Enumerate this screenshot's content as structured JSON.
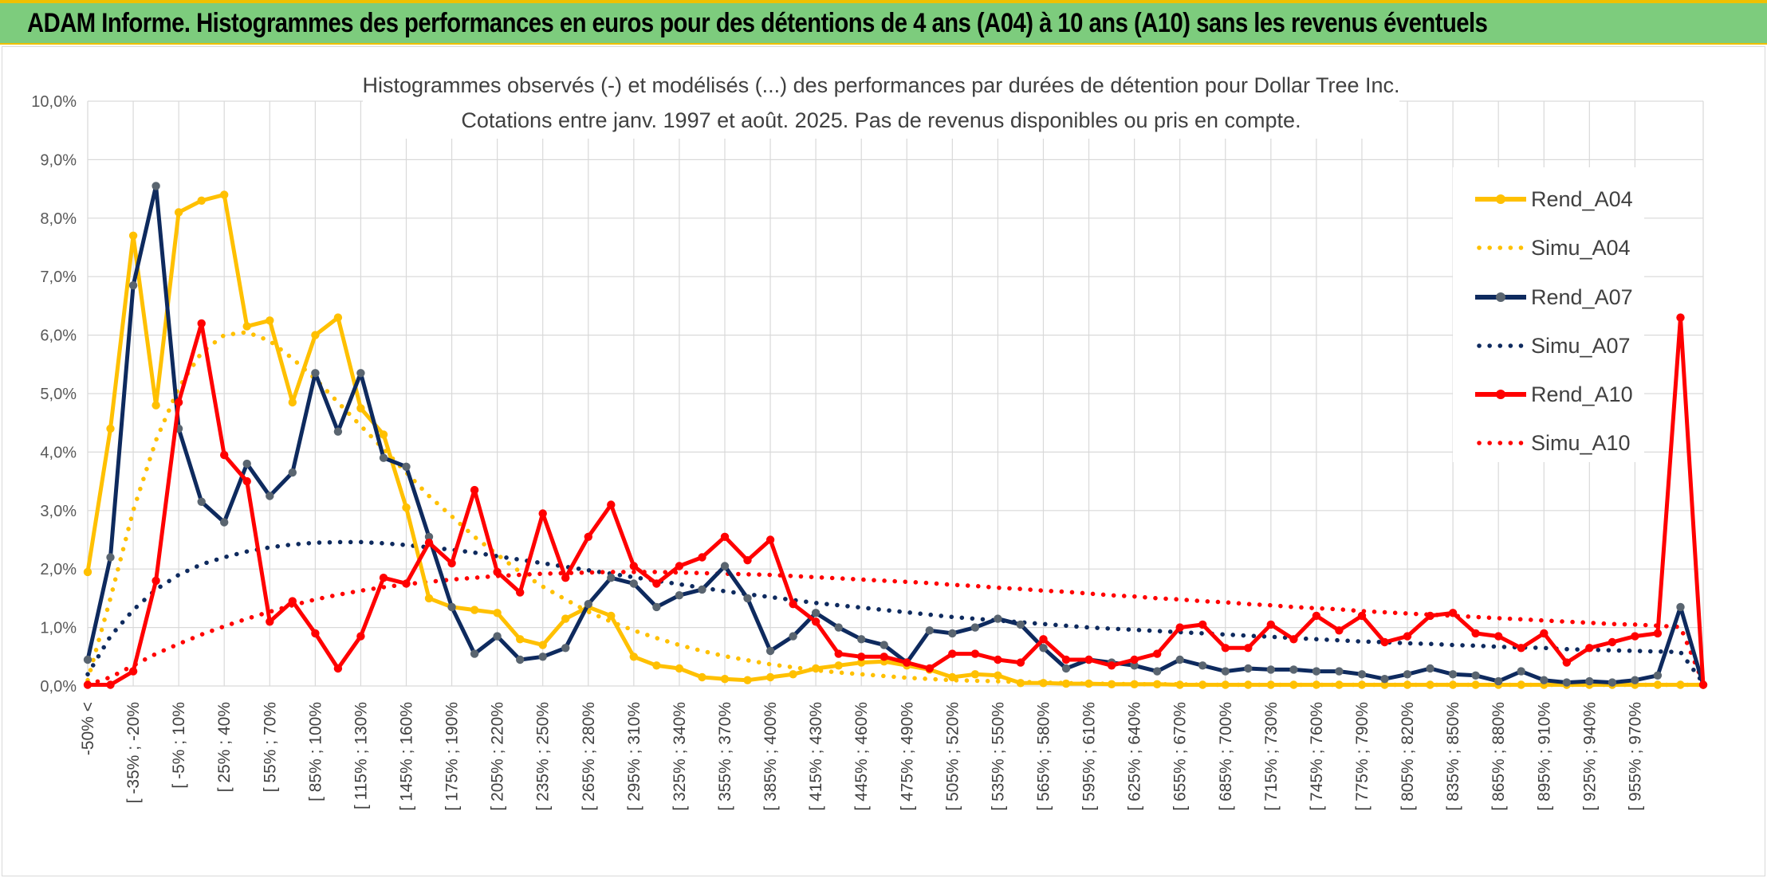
{
  "banner": {
    "title": "ADAM Informe. Histogrammes des performances en euros pour des détentions de 4 ans (A04) à 10 ans (A10) sans les revenus éventuels"
  },
  "colors": {
    "banner_bg": "#7dcc7d",
    "accent_rule": "#f0c000",
    "A04": "#ffc000",
    "A07": "#0e2a5e",
    "A07_marker": "#5a6570",
    "A10": "#ff0000",
    "grid": "#d9d9d9"
  },
  "chart_data": {
    "type": "line",
    "title": "Histogrammes observés (-) et modélisés (...) des performances par durées de détention pour Dollar Tree Inc.",
    "subtitle": "Cotations entre janv. 1997 et août. 2025. Pas de revenus disponibles ou pris en compte.",
    "xlabel": "",
    "ylabel": "",
    "ylim": [
      0,
      10
    ],
    "y_ticks": [
      "0,0%",
      "1,0%",
      "2,0%",
      "3,0%",
      "4,0%",
      "5,0%",
      "6,0%",
      "7,0%",
      "8,0%",
      "9,0%",
      "10,0%"
    ],
    "x_tick_labels": [
      "-50% <",
      "[ -35% ; -20%",
      "[ -5% ; 10%",
      "[ 25% ; 40%",
      "[ 55% ; 70%",
      "[ 85% ; 100%",
      "[ 115% ; 130%",
      "[ 145% ; 160%",
      "[ 175% ; 190%",
      "[ 205% ; 220%",
      "[ 235% ; 250%",
      "[ 265% ; 280%",
      "[ 295% ; 310%",
      "[ 325% ; 340%",
      "[ 355% ; 370%",
      "[ 385% ; 400%",
      "[ 415% ; 430%",
      "[ 445% ; 460%",
      "[ 475% ; 490%",
      "[ 505% ; 520%",
      "[ 535% ; 550%",
      "[ 565% ; 580%",
      "[ 595% ; 610%",
      "[ 625% ; 640%",
      "[ 655% ; 670%",
      "[ 685% ; 700%",
      "[ 715% ; 730%",
      "[ 745% ; 760%",
      "[ 775% ; 790%",
      "[ 805% ; 820%",
      "[ 835% ; 850%",
      "[ 865% ; 880%",
      "[ 895% ; 910%",
      "[ 925% ; 940%",
      "[ 955% ; 970%"
    ],
    "n_bins": 72,
    "grid": true,
    "legend_position": "right",
    "series": [
      {
        "name": "Rend_A04",
        "style": "solid",
        "color": "#ffc000",
        "values": [
          1.95,
          4.4,
          7.7,
          4.8,
          8.1,
          8.3,
          8.4,
          6.15,
          6.25,
          4.85,
          6.0,
          6.3,
          4.75,
          4.3,
          3.05,
          1.5,
          1.35,
          1.3,
          1.25,
          0.8,
          0.7,
          1.15,
          1.35,
          1.2,
          0.5,
          0.35,
          0.3,
          0.15,
          0.12,
          0.1,
          0.15,
          0.2,
          0.3,
          0.35,
          0.4,
          0.42,
          0.35,
          0.28,
          0.15,
          0.2,
          0.18,
          0.05,
          0.05,
          0.04,
          0.04,
          0.03,
          0.03,
          0.03,
          0.02,
          0.02,
          0.02,
          0.02,
          0.02,
          0.02,
          0.02,
          0.02,
          0.02,
          0.02,
          0.02,
          0.02,
          0.02,
          0.02,
          0.02,
          0.02,
          0.02,
          0.02,
          0.02,
          0.02,
          0.02,
          0.02,
          0.02,
          0.02
        ]
      },
      {
        "name": "Simu_A04",
        "style": "dotted",
        "color": "#ffc000",
        "values": [
          0.1,
          1.5,
          3.0,
          4.2,
          5.1,
          5.7,
          6.0,
          6.05,
          5.9,
          5.6,
          5.25,
          4.85,
          4.45,
          4.05,
          3.65,
          3.25,
          2.9,
          2.55,
          2.25,
          1.95,
          1.7,
          1.48,
          1.27,
          1.1,
          0.95,
          0.82,
          0.7,
          0.6,
          0.51,
          0.44,
          0.37,
          0.32,
          0.27,
          0.23,
          0.2,
          0.17,
          0.14,
          0.12,
          0.1,
          0.09,
          0.08,
          0.07,
          0.06,
          0.05,
          0.04,
          0.04,
          0.03,
          0.03,
          0.03,
          0.02,
          0.02,
          0.02,
          0.02,
          0.02,
          0.02,
          0.02,
          0.02,
          0.02,
          0.02,
          0.02,
          0.02,
          0.02,
          0.02,
          0.02,
          0.02,
          0.02,
          0.02,
          0.02,
          0.02,
          0.02,
          0.02,
          0.02
        ]
      },
      {
        "name": "Rend_A07",
        "style": "solid",
        "color": "#0e2a5e",
        "values": [
          0.45,
          2.2,
          6.85,
          8.55,
          4.4,
          3.15,
          2.8,
          3.8,
          3.25,
          3.65,
          5.35,
          4.35,
          5.35,
          3.9,
          3.75,
          2.55,
          1.35,
          0.55,
          0.85,
          0.45,
          0.5,
          0.65,
          1.4,
          1.85,
          1.75,
          1.35,
          1.55,
          1.65,
          2.05,
          1.5,
          0.6,
          0.85,
          1.25,
          1.0,
          0.8,
          0.7,
          0.4,
          0.95,
          0.9,
          1.0,
          1.15,
          1.05,
          0.65,
          0.3,
          0.45,
          0.4,
          0.35,
          0.25,
          0.45,
          0.35,
          0.25,
          0.3,
          0.28,
          0.28,
          0.25,
          0.25,
          0.2,
          0.12,
          0.2,
          0.3,
          0.2,
          0.18,
          0.08,
          0.25,
          0.1,
          0.06,
          0.08,
          0.06,
          0.1,
          0.18,
          1.35,
          0.02
        ]
      },
      {
        "name": "Simu_A07",
        "style": "dotted",
        "color": "#0e2a5e",
        "values": [
          0.2,
          0.85,
          1.3,
          1.65,
          1.9,
          2.08,
          2.2,
          2.3,
          2.37,
          2.42,
          2.45,
          2.46,
          2.46,
          2.44,
          2.41,
          2.37,
          2.33,
          2.28,
          2.22,
          2.16,
          2.1,
          2.04,
          1.98,
          1.92,
          1.86,
          1.8,
          1.74,
          1.68,
          1.62,
          1.57,
          1.52,
          1.47,
          1.42,
          1.38,
          1.34,
          1.3,
          1.26,
          1.22,
          1.18,
          1.15,
          1.12,
          1.09,
          1.06,
          1.03,
          1.0,
          0.98,
          0.96,
          0.94,
          0.92,
          0.9,
          0.88,
          0.86,
          0.84,
          0.82,
          0.8,
          0.78,
          0.76,
          0.75,
          0.73,
          0.72,
          0.7,
          0.69,
          0.67,
          0.66,
          0.65,
          0.63,
          0.62,
          0.61,
          0.6,
          0.59,
          0.58,
          0.05
        ]
      },
      {
        "name": "Rend_A10",
        "style": "solid",
        "color": "#ff0000",
        "values": [
          0.02,
          0.02,
          0.25,
          1.8,
          4.85,
          6.2,
          3.95,
          3.5,
          1.1,
          1.45,
          0.9,
          0.3,
          0.85,
          1.85,
          1.75,
          2.45,
          2.1,
          3.35,
          1.95,
          1.6,
          2.95,
          1.85,
          2.55,
          3.1,
          2.05,
          1.75,
          2.05,
          2.2,
          2.55,
          2.15,
          2.5,
          1.4,
          1.1,
          0.55,
          0.5,
          0.5,
          0.4,
          0.3,
          0.55,
          0.55,
          0.45,
          0.4,
          0.8,
          0.45,
          0.45,
          0.35,
          0.45,
          0.55,
          1.0,
          1.05,
          0.65,
          0.65,
          1.05,
          0.8,
          1.2,
          0.95,
          1.2,
          0.75,
          0.85,
          1.2,
          1.25,
          0.9,
          0.85,
          0.65,
          0.9,
          0.4,
          0.65,
          0.75,
          0.85,
          0.9,
          6.3,
          0.02
        ]
      },
      {
        "name": "Simu_A10",
        "style": "dotted",
        "color": "#ff0000",
        "values": [
          0.02,
          0.15,
          0.35,
          0.55,
          0.72,
          0.88,
          1.02,
          1.15,
          1.27,
          1.38,
          1.48,
          1.56,
          1.63,
          1.69,
          1.74,
          1.78,
          1.82,
          1.85,
          1.88,
          1.9,
          1.92,
          1.93,
          1.94,
          1.95,
          1.95,
          1.95,
          1.94,
          1.93,
          1.92,
          1.91,
          1.9,
          1.88,
          1.86,
          1.84,
          1.82,
          1.8,
          1.78,
          1.76,
          1.73,
          1.71,
          1.68,
          1.66,
          1.63,
          1.61,
          1.58,
          1.55,
          1.53,
          1.5,
          1.48,
          1.45,
          1.43,
          1.4,
          1.38,
          1.35,
          1.33,
          1.31,
          1.28,
          1.26,
          1.24,
          1.22,
          1.2,
          1.18,
          1.16,
          1.14,
          1.12,
          1.1,
          1.08,
          1.06,
          1.05,
          1.03,
          1.01,
          0.05
        ]
      }
    ]
  }
}
